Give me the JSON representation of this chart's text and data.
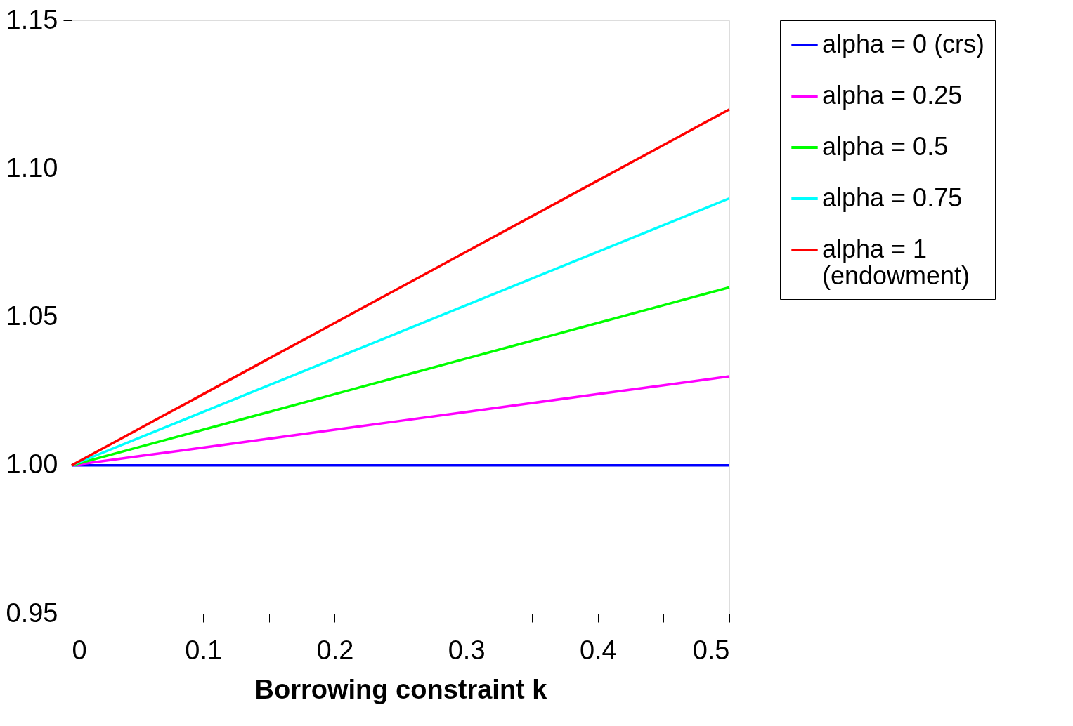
{
  "chart_data": {
    "type": "line",
    "xlabel": "Borrowing constraint k",
    "x": [
      0,
      0.05,
      0.1,
      0.15,
      0.2,
      0.25,
      0.3,
      0.35,
      0.4,
      0.45,
      0.5
    ],
    "series": [
      {
        "name": "alpha = 0 (crs)",
        "color": "#0000ff",
        "values": [
          1,
          1,
          1,
          1,
          1,
          1,
          1,
          1,
          1,
          1,
          1
        ]
      },
      {
        "name": "alpha = 0.25",
        "color": "#ff00ff",
        "values": [
          1,
          1.003,
          1.006,
          1.009,
          1.012,
          1.015,
          1.018,
          1.021,
          1.024,
          1.027,
          1.03
        ]
      },
      {
        "name": "alpha = 0.5",
        "color": "#00ff00",
        "values": [
          1,
          1.006,
          1.012,
          1.018,
          1.024,
          1.03,
          1.036,
          1.042,
          1.048,
          1.054,
          1.06
        ]
      },
      {
        "name": "alpha = 0.75",
        "color": "#00ffff",
        "values": [
          1,
          1.009,
          1.018,
          1.027,
          1.036,
          1.045,
          1.054,
          1.063,
          1.072,
          1.081,
          1.09
        ]
      },
      {
        "name": "alpha = 1 (endowment)",
        "color": "#ff0000",
        "values": [
          1,
          1.012,
          1.024,
          1.036,
          1.048,
          1.06,
          1.072,
          1.084,
          1.096,
          1.108,
          1.12
        ]
      }
    ],
    "xlim": [
      0,
      0.5
    ],
    "xticks": [
      0,
      {
        "value": 0.05,
        "label": null
      },
      0.1,
      {
        "value": 0.15,
        "label": null
      },
      0.2,
      {
        "value": 0.25,
        "label": null
      },
      0.3,
      {
        "value": 0.35,
        "label": null
      },
      0.4,
      {
        "value": 0.45,
        "label": null
      },
      0.5
    ],
    "ylim": [
      0.95,
      1.15
    ],
    "yticks": [
      {
        "value": 0.95,
        "label": "0.95"
      },
      {
        "value": 1.0,
        "label": "1.00"
      },
      {
        "value": 1.05,
        "label": "1.05"
      },
      {
        "value": 1.1,
        "label": "1.10"
      },
      {
        "value": 1.15,
        "label": "1.15"
      }
    ],
    "grid": false,
    "legend": "right",
    "marker": "none",
    "line_style": "solid"
  }
}
